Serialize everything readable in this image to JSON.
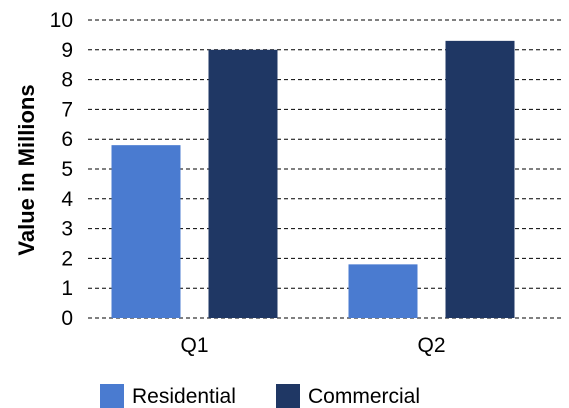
{
  "chart_data": {
    "type": "bar",
    "categories": [
      "Q1",
      "Q2"
    ],
    "series": [
      {
        "name": "Residential",
        "values": [
          5.8,
          1.8
        ],
        "color": "#4a7bd0"
      },
      {
        "name": "Commercial",
        "values": [
          9.0,
          9.3
        ],
        "color": "#1f3764"
      }
    ],
    "ylabel": "Value in Millions",
    "xlabel": "",
    "ylim": [
      0,
      10
    ],
    "yticks": [
      0,
      1,
      2,
      3,
      4,
      5,
      6,
      7,
      8,
      9,
      10
    ],
    "grid": "dashed horizontal",
    "legend": "bottom"
  }
}
